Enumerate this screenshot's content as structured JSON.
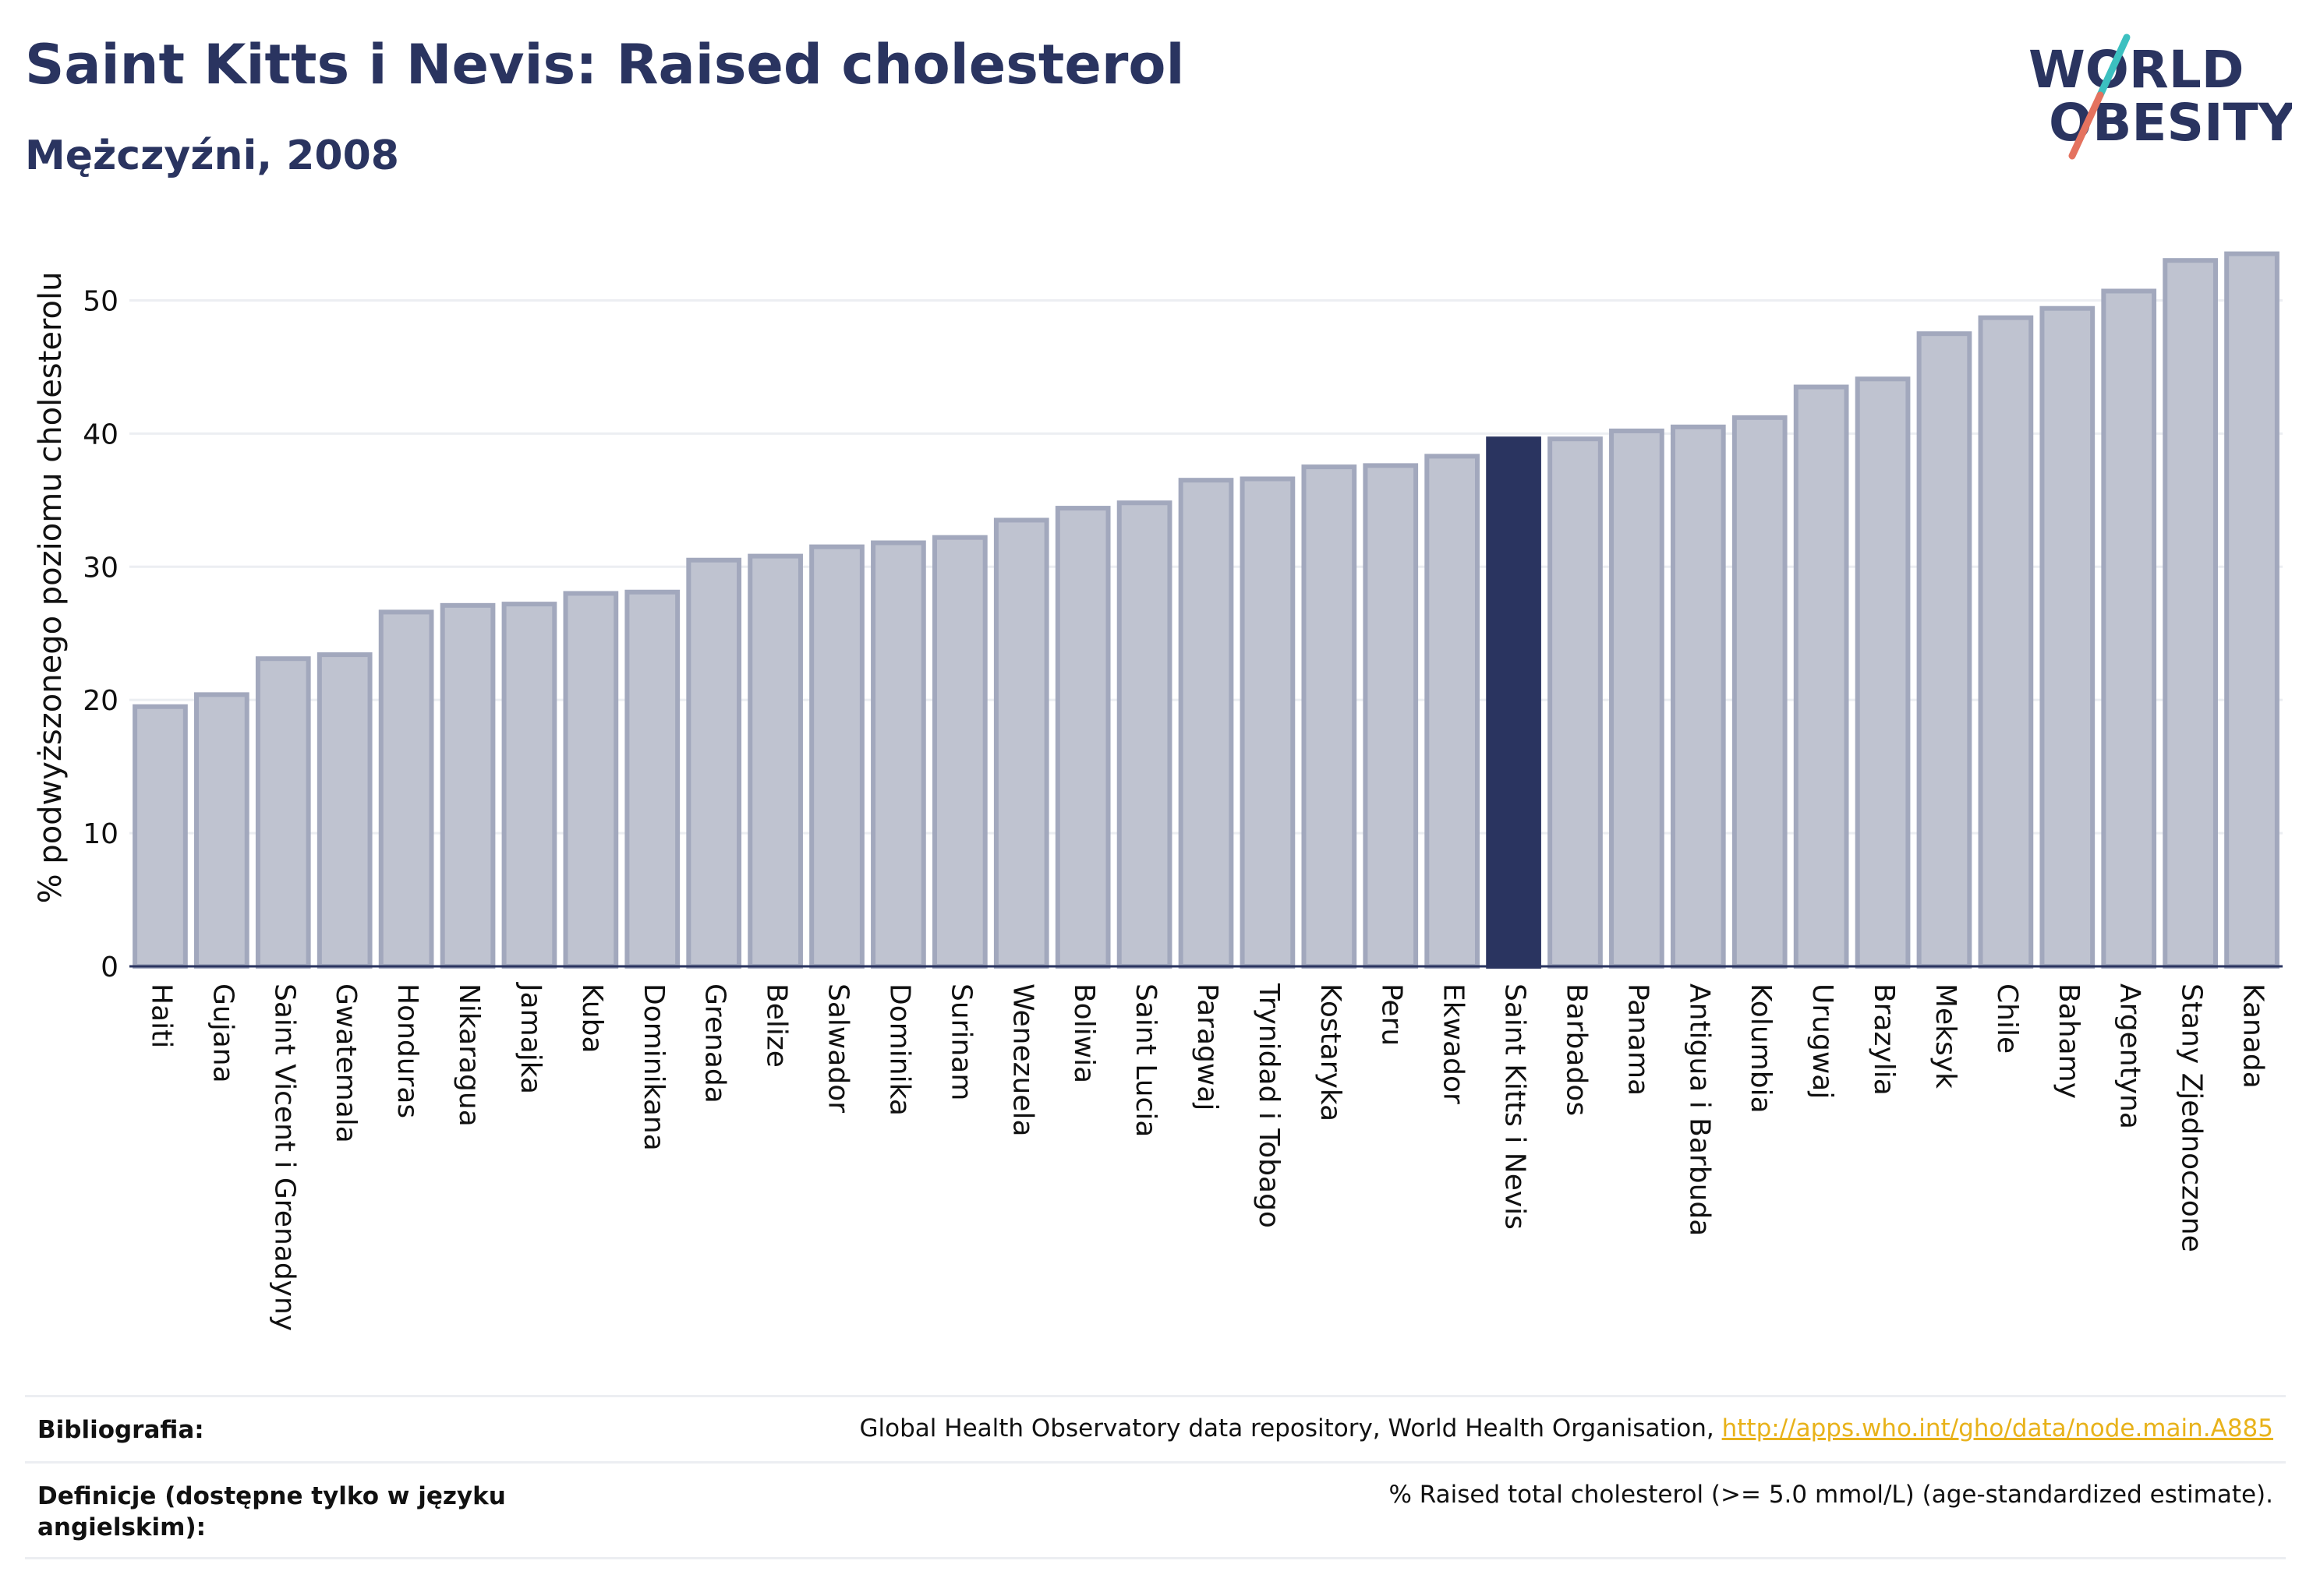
{
  "header": {
    "title": "Saint Kitts i Nevis: Raised cholesterol",
    "subtitle": "Mężczyźni, 2008"
  },
  "logo": {
    "line1": "WORLD",
    "line2": "OBESITY",
    "colors": {
      "text": "#2a3460",
      "slash_top": "#3cc0c0",
      "slash_bottom": "#e4725f"
    }
  },
  "chart_data": {
    "type": "bar",
    "ylabel": "% podwyższonego poziomu cholesterolu",
    "ylim": [
      0,
      55
    ],
    "yticks": [
      0,
      10,
      20,
      30,
      40,
      50
    ],
    "grid": true,
    "highlight": "Saint Kitts i Nevis",
    "colors": {
      "bar": "#bfc3d0",
      "bar_edge": "#a2a8bd",
      "highlight": "#2a3460",
      "grid": "#eceef2",
      "axis": "#2a3460"
    },
    "categories": [
      "Haiti",
      "Gujana",
      "Saint Vicent i Grenadyny",
      "Gwatemala",
      "Honduras",
      "Nikaragua",
      "Jamajka",
      "Kuba",
      "Dominikana",
      "Grenada",
      "Belize",
      "Salwador",
      "Dominika",
      "Surinam",
      "Wenezuela",
      "Boliwia",
      "Saint Lucia",
      "Paragwaj",
      "Trynidad i Tobago",
      "Kostaryka",
      "Peru",
      "Ekwador",
      "Saint Kitts i Nevis",
      "Barbados",
      "Panama",
      "Antigua i Barbuda",
      "Kolumbia",
      "Urugwaj",
      "Brazylia",
      "Meksyk",
      "Chile",
      "Bahamy",
      "Argentyna",
      "Stany Zjednoczone",
      "Kanada"
    ],
    "values": [
      19.5,
      20.4,
      23.1,
      23.4,
      26.6,
      27.1,
      27.2,
      28.0,
      28.1,
      30.5,
      30.8,
      31.5,
      31.8,
      32.2,
      33.5,
      34.4,
      34.8,
      36.5,
      36.6,
      37.5,
      37.6,
      38.3,
      39.6,
      39.6,
      40.2,
      40.5,
      41.2,
      43.5,
      44.1,
      47.5,
      48.7,
      49.4,
      50.7,
      53.0,
      53.5
    ]
  },
  "footer": {
    "bibliography_label": "Bibliografia:",
    "bibliography_text": "Global Health Observatory data repository, World Health Organisation, ",
    "bibliography_link": "http://apps.who.int/gho/data/node.main.A885",
    "definition_label": "Definicje (dostępne tylko w języku angielskim):",
    "definition_text": "% Raised total cholesterol (>= 5.0 mmol/L) (age-standardized estimate)."
  }
}
